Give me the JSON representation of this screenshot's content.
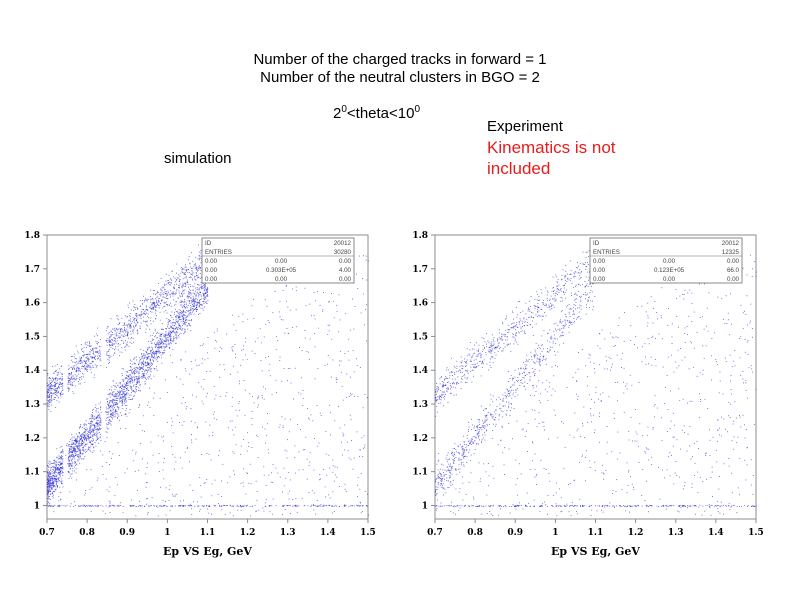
{
  "header": {
    "title_line1": "Number of the charged tracks in forward = 1",
    "title_line2": "Number of the neutral clusters in BGO = 2",
    "range_a": "2",
    "range_a_sup": "0",
    "range_mid": "<theta<10",
    "range_b_sup": "0"
  },
  "labels": {
    "simulation": "simulation",
    "experiment": "Experiment",
    "note_line1": "Kinematics is not",
    "note_line2": "included"
  },
  "colors": {
    "points": "#2b2bd6",
    "note": "#e81c1c",
    "frame": "#8c8c8c"
  },
  "chart_data": [
    {
      "type": "scatter",
      "name": "simulation",
      "xlabel": "Ep VS Eg, GeV",
      "xlim": [
        0.7,
        1.5
      ],
      "ylim": [
        0.96,
        1.8
      ],
      "xticks": [
        "0.7",
        "0.8",
        "0.9",
        "1",
        "1.1",
        "1.2",
        "1.3",
        "1.4",
        "1.5"
      ],
      "yticks": [
        "1",
        "1.1",
        "1.2",
        "1.3",
        "1.4",
        "1.5",
        "1.6",
        "1.7",
        "1.8"
      ],
      "stats_box": [
        [
          "ID",
          "",
          "20012"
        ],
        [
          "ENTRIES",
          "",
          "30280"
        ],
        [
          "0.00",
          "0.00",
          "0.00"
        ],
        [
          "0.00",
          "0.303E+05",
          "4.00"
        ],
        [
          "0.00",
          "0.00",
          "0.00"
        ]
      ],
      "bands": [
        {
          "x": [
            0.7,
            1.1
          ],
          "y": [
            1.06,
            1.65
          ],
          "density": "high"
        },
        {
          "x": [
            0.7,
            1.1
          ],
          "y": [
            1.33,
            1.73
          ],
          "density": "medium"
        }
      ],
      "gap_x": [
        0.745,
        0.84
      ],
      "background_density": "medium"
    },
    {
      "type": "scatter",
      "name": "experiment",
      "xlabel": "Ep VS Eg, GeV",
      "xlim": [
        0.7,
        1.5
      ],
      "ylim": [
        0.96,
        1.8
      ],
      "xticks": [
        "0.7",
        "0.8",
        "0.9",
        "1",
        "1.1",
        "1.2",
        "1.3",
        "1.4",
        "1.5"
      ],
      "yticks": [
        "1",
        "1.1",
        "1.2",
        "1.3",
        "1.4",
        "1.5",
        "1.6",
        "1.7",
        "1.8"
      ],
      "stats_box": [
        [
          "ID",
          "",
          "20012"
        ],
        [
          "ENTRIES",
          "",
          "12325"
        ],
        [
          "0.00",
          "0.00",
          "0.00"
        ],
        [
          "0.00",
          "0.123E+05",
          "66.0"
        ],
        [
          "0.00",
          "0.00",
          "0.00"
        ]
      ],
      "bands": [
        {
          "x": [
            0.7,
            1.1
          ],
          "y": [
            1.06,
            1.65
          ],
          "density": "low"
        },
        {
          "x": [
            0.7,
            1.1
          ],
          "y": [
            1.33,
            1.73
          ],
          "density": "low"
        }
      ],
      "gap_x": [],
      "background_density": "medium"
    }
  ]
}
